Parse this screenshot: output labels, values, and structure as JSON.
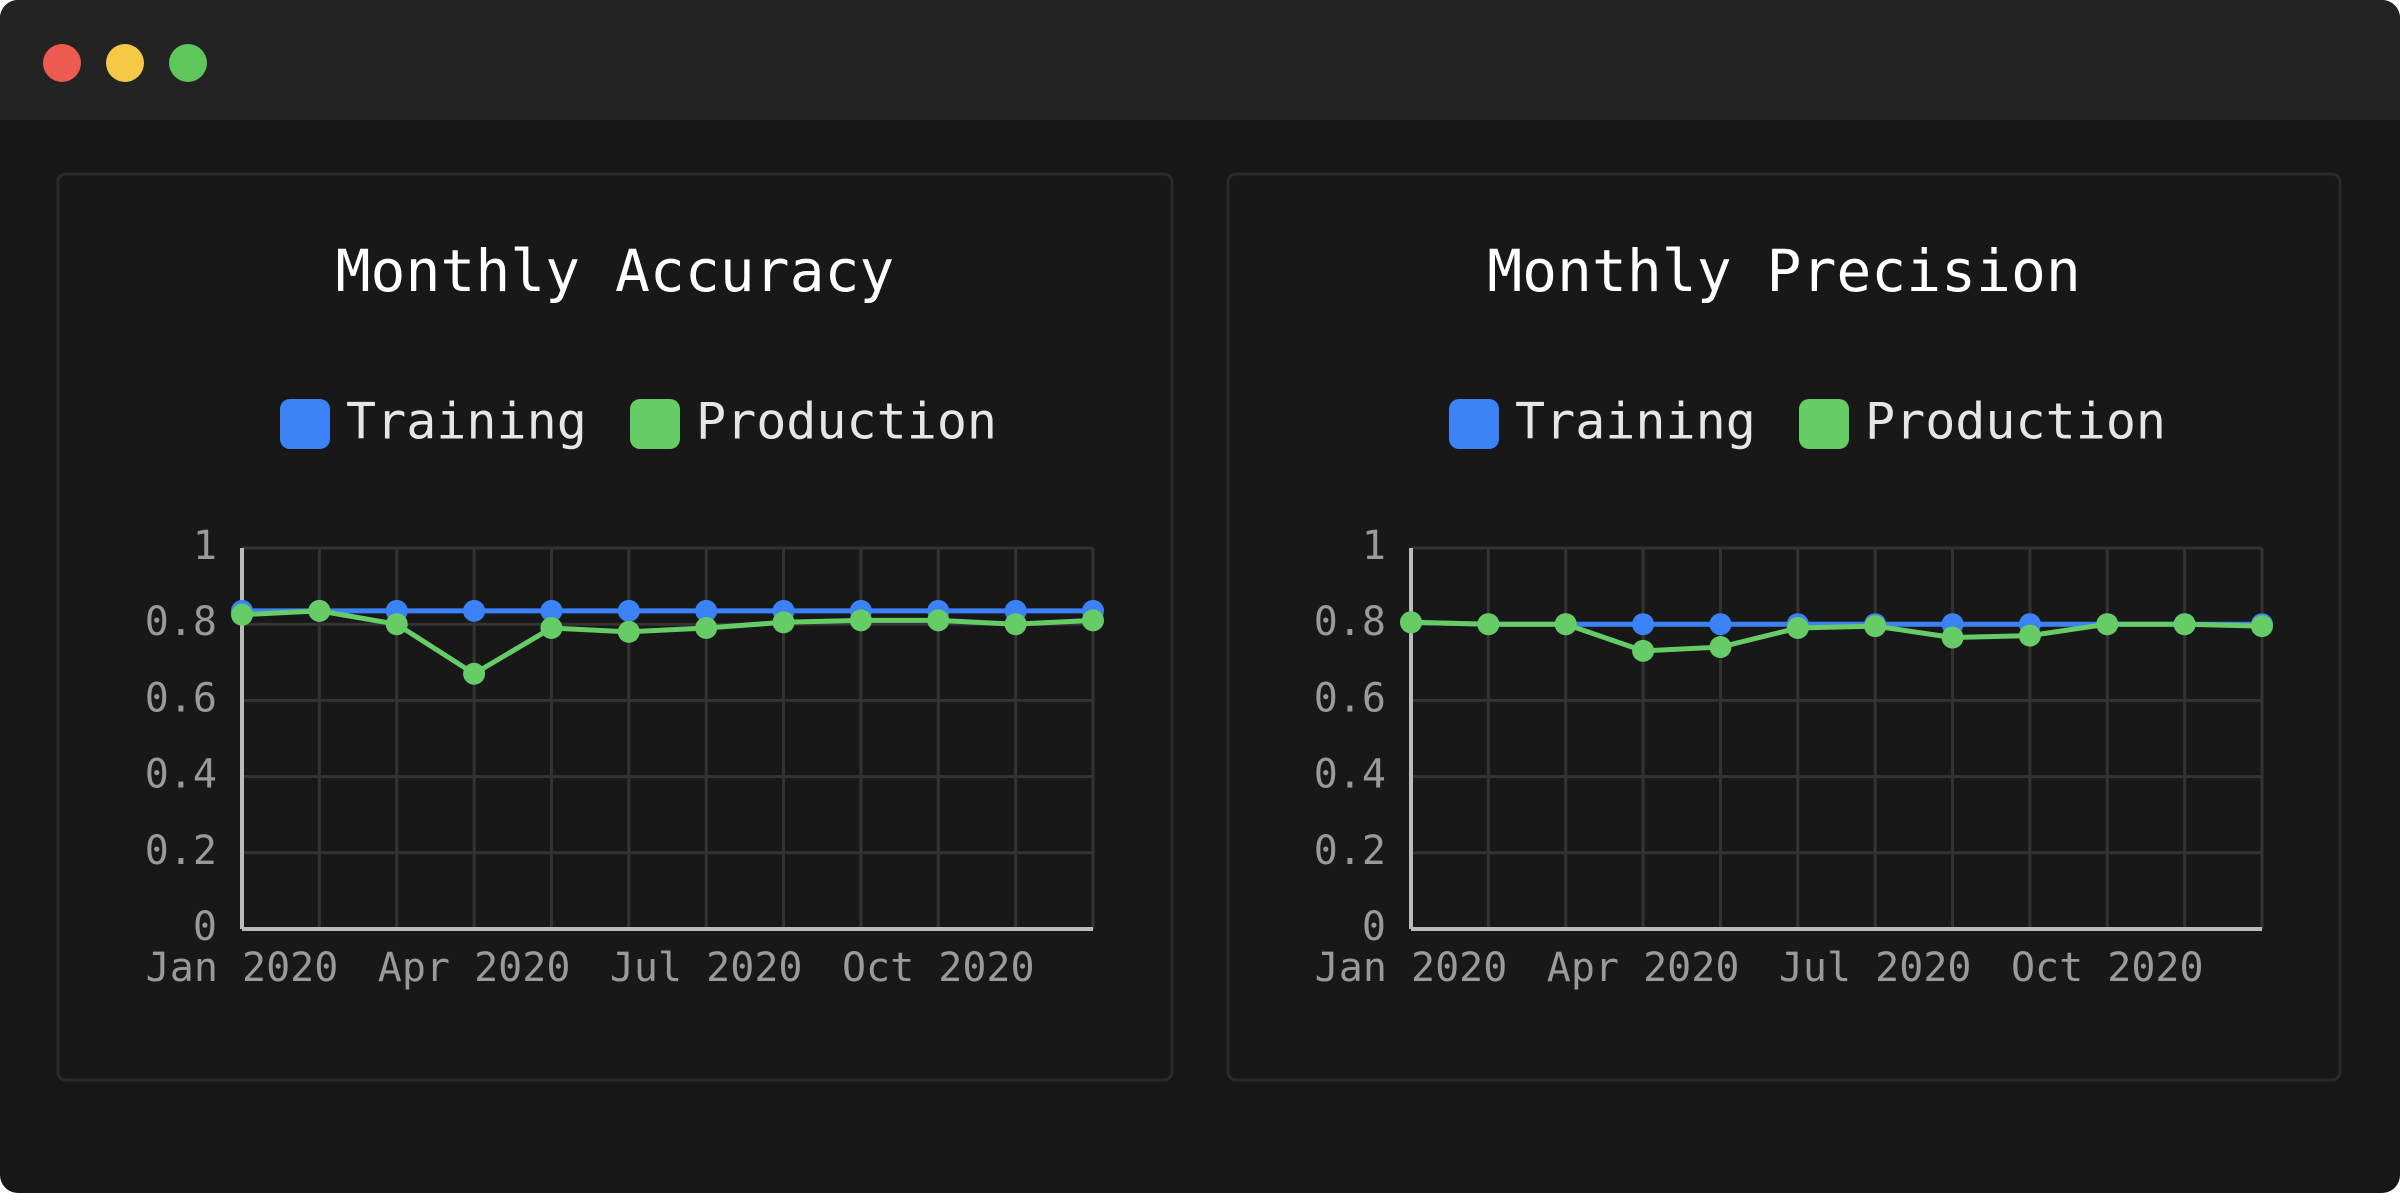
{
  "chart_data": [
    {
      "type": "line",
      "title": "Monthly Accuracy",
      "categories": [
        "Jan 2020",
        null,
        null,
        "Apr 2020",
        null,
        null,
        "Jul 2020",
        null,
        null,
        "Oct 2020",
        null,
        null
      ],
      "series": [
        {
          "name": "Training",
          "color": "#3b82f6",
          "values": [
            0.835,
            0.835,
            0.835,
            0.835,
            0.835,
            0.835,
            0.835,
            0.835,
            0.835,
            0.835,
            0.835,
            0.835
          ]
        },
        {
          "name": "Production",
          "color": "#66cc66",
          "values": [
            0.825,
            0.835,
            0.8,
            0.67,
            0.79,
            0.78,
            0.79,
            0.805,
            0.81,
            0.81,
            0.8,
            0.81
          ]
        }
      ],
      "ylim": [
        0,
        1
      ],
      "yticks": [
        0,
        0.2,
        0.4,
        0.6,
        0.8,
        1
      ],
      "grid": true
    },
    {
      "type": "line",
      "title": "Monthly Precision",
      "categories": [
        "Jan 2020",
        null,
        null,
        "Apr 2020",
        null,
        null,
        "Jul 2020",
        null,
        null,
        "Oct 2020",
        null,
        null
      ],
      "series": [
        {
          "name": "Training",
          "color": "#3b82f6",
          "values": [
            0.805,
            0.8,
            0.8,
            0.8,
            0.8,
            0.8,
            0.8,
            0.8,
            0.8,
            0.8,
            0.8,
            0.8
          ]
        },
        {
          "name": "Production",
          "color": "#66cc66",
          "values": [
            0.805,
            0.8,
            0.8,
            0.73,
            0.74,
            0.79,
            0.795,
            0.765,
            0.77,
            0.8,
            0.8,
            0.795
          ]
        }
      ],
      "ylim": [
        0,
        1
      ],
      "yticks": [
        0,
        0.2,
        0.4,
        0.6,
        0.8,
        1
      ],
      "grid": true
    }
  ]
}
